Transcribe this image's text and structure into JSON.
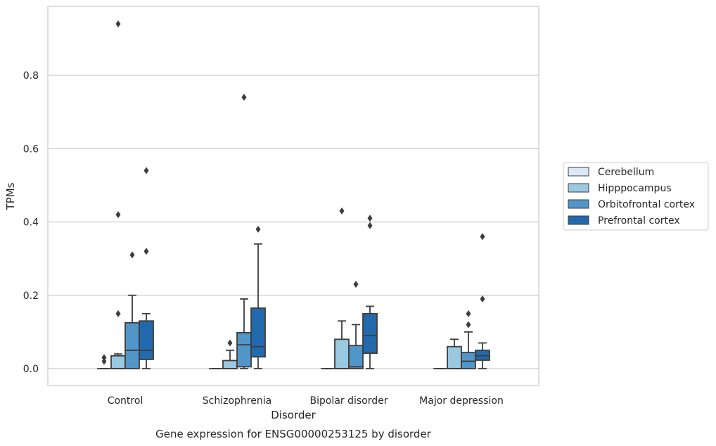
{
  "chart_data": {
    "type": "box",
    "title": "",
    "caption": "Gene expression for ENSG00000253125 by disorder",
    "xlabel": "Disorder",
    "ylabel": "TPMs",
    "categories": [
      "Control",
      "Schizophrenia",
      "Bipolar disorder",
      "Major depression"
    ],
    "yticks": [
      "0.0",
      "0.2",
      "0.4",
      "0.6",
      "0.8"
    ],
    "ytick_values": [
      0.0,
      0.2,
      0.4,
      0.6,
      0.8
    ],
    "ylim": [
      -0.045,
      0.99
    ],
    "grid": true,
    "legend_position": "right",
    "series": [
      {
        "name": "Cerebellum",
        "color": "#dbe9f6",
        "boxes": [
          {
            "q1": 0.0,
            "median": 0.0,
            "q3": 0.0,
            "whisker_low": 0.0,
            "whisker_high": 0.0,
            "outliers": [
              0.03,
              0.02
            ]
          },
          {
            "q1": 0.0,
            "median": 0.0,
            "q3": 0.0,
            "whisker_low": 0.0,
            "whisker_high": 0.0,
            "outliers": []
          },
          {
            "q1": 0.0,
            "median": 0.0,
            "q3": 0.0,
            "whisker_low": 0.0,
            "whisker_high": 0.0,
            "outliers": []
          },
          {
            "q1": 0.0,
            "median": 0.0,
            "q3": 0.0,
            "whisker_low": 0.0,
            "whisker_high": 0.0,
            "outliers": []
          }
        ]
      },
      {
        "name": "Hipppocampus",
        "color": "#9ac8e0",
        "boxes": [
          {
            "q1": 0.0,
            "median": 0.0,
            "q3": 0.035,
            "whisker_low": 0.0,
            "whisker_high": 0.04,
            "outliers": [
              0.94,
              0.42,
              0.15
            ]
          },
          {
            "q1": 0.0,
            "median": 0.0,
            "q3": 0.022,
            "whisker_low": 0.0,
            "whisker_high": 0.05,
            "outliers": [
              0.07
            ]
          },
          {
            "q1": 0.0,
            "median": 0.0,
            "q3": 0.08,
            "whisker_low": 0.0,
            "whisker_high": 0.13,
            "outliers": [
              0.43
            ]
          },
          {
            "q1": 0.0,
            "median": 0.0,
            "q3": 0.06,
            "whisker_low": 0.0,
            "whisker_high": 0.08,
            "outliers": []
          }
        ]
      },
      {
        "name": "Orbitofrontal cortex",
        "color": "#5296c8",
        "boxes": [
          {
            "q1": 0.0,
            "median": 0.05,
            "q3": 0.125,
            "whisker_low": 0.0,
            "whisker_high": 0.2,
            "outliers": [
              0.31
            ]
          },
          {
            "q1": 0.005,
            "median": 0.065,
            "q3": 0.098,
            "whisker_low": 0.0,
            "whisker_high": 0.19,
            "outliers": [
              0.74
            ]
          },
          {
            "q1": 0.0,
            "median": 0.005,
            "q3": 0.063,
            "whisker_low": 0.0,
            "whisker_high": 0.12,
            "outliers": [
              0.23
            ]
          },
          {
            "q1": 0.0,
            "median": 0.02,
            "q3": 0.044,
            "whisker_low": 0.0,
            "whisker_high": 0.1,
            "outliers": [
              0.15,
              0.12
            ]
          }
        ]
      },
      {
        "name": "Prefrontal cortex",
        "color": "#2369ad",
        "boxes": [
          {
            "q1": 0.025,
            "median": 0.05,
            "q3": 0.13,
            "whisker_low": 0.0,
            "whisker_high": 0.15,
            "outliers": [
              0.54,
              0.32
            ]
          },
          {
            "q1": 0.032,
            "median": 0.06,
            "q3": 0.165,
            "whisker_low": 0.0,
            "whisker_high": 0.34,
            "outliers": [
              0.38
            ]
          },
          {
            "q1": 0.042,
            "median": 0.09,
            "q3": 0.15,
            "whisker_low": 0.0,
            "whisker_high": 0.17,
            "outliers": [
              0.41,
              0.39
            ]
          },
          {
            "q1": 0.023,
            "median": 0.035,
            "q3": 0.05,
            "whisker_low": 0.0,
            "whisker_high": 0.07,
            "outliers": [
              0.36,
              0.19
            ]
          }
        ]
      }
    ]
  }
}
